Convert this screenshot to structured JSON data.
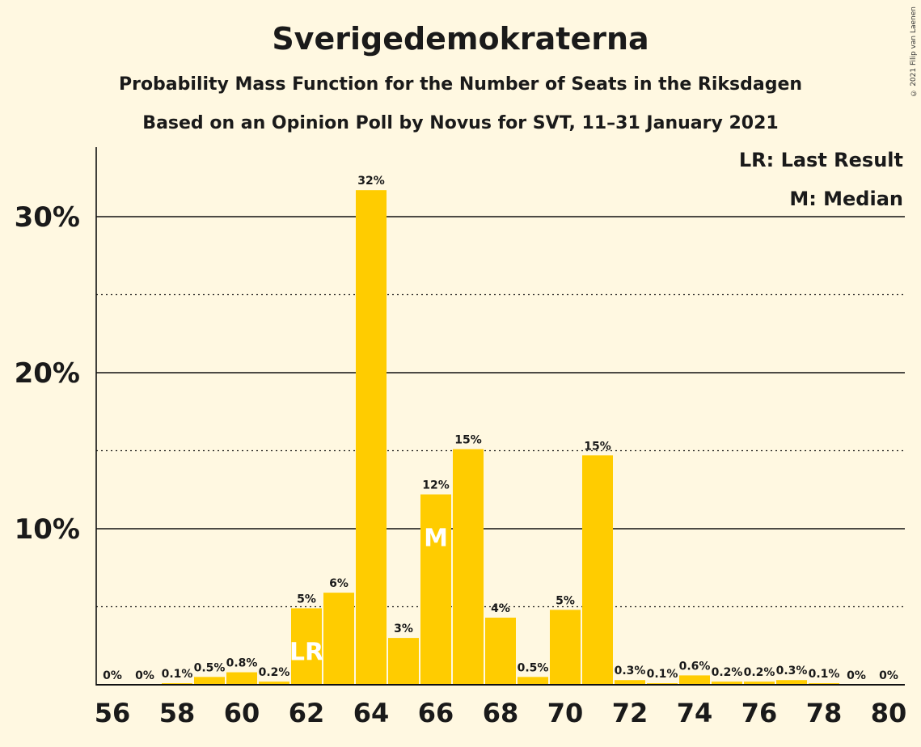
{
  "title": "Sverigedemokraterna",
  "subtitle1": "Probability Mass Function for the Number of Seats in the Riksdagen",
  "subtitle2": "Based on an Opinion Poll by Novus for SVT, 11–31 January 2021",
  "copyright": "© 2021 Filip van Laenen",
  "legend": {
    "last_result": "LR: Last Result",
    "median": "M: Median"
  },
  "colors": {
    "bar": "#FFCC00",
    "background": "#FFF8E1",
    "text": "#1a1a1a"
  },
  "chart_data": {
    "type": "bar",
    "categories": [
      56,
      57,
      58,
      59,
      60,
      61,
      62,
      63,
      64,
      65,
      66,
      67,
      68,
      69,
      70,
      71,
      72,
      73,
      74,
      75,
      76,
      77,
      78,
      79,
      80
    ],
    "values": [
      0,
      0,
      0.1,
      0.5,
      0.8,
      0.2,
      4.9,
      5.9,
      31.7,
      3.0,
      12.2,
      15.1,
      4.3,
      0.5,
      4.8,
      14.7,
      0.3,
      0.1,
      0.6,
      0.2,
      0.2,
      0.3,
      0.1,
      0,
      0
    ],
    "data_labels": [
      "0%",
      "0%",
      "0.1%",
      "0.5%",
      "0.8%",
      "0.2%",
      "5%",
      "6%",
      "32%",
      "3%",
      "12%",
      "15%",
      "4%",
      "0.5%",
      "5%",
      "15%",
      "0.3%",
      "0.1%",
      "0.6%",
      "0.2%",
      "0.2%",
      "0.3%",
      "0.1%",
      "0%",
      "0%"
    ],
    "x_tick_labels": [
      "56",
      "58",
      "60",
      "62",
      "64",
      "66",
      "68",
      "70",
      "72",
      "74",
      "76",
      "78",
      "80"
    ],
    "y_tick_labels": [
      "10%",
      "20%",
      "30%"
    ],
    "y_ticks": [
      10,
      20,
      30
    ],
    "ylim": [
      0,
      34.5
    ],
    "last_result_seat": 62,
    "last_result_label": "LR",
    "median_seat": 66,
    "median_label": "M",
    "grid": "solid at 10% steps, dotted at 5% steps"
  }
}
